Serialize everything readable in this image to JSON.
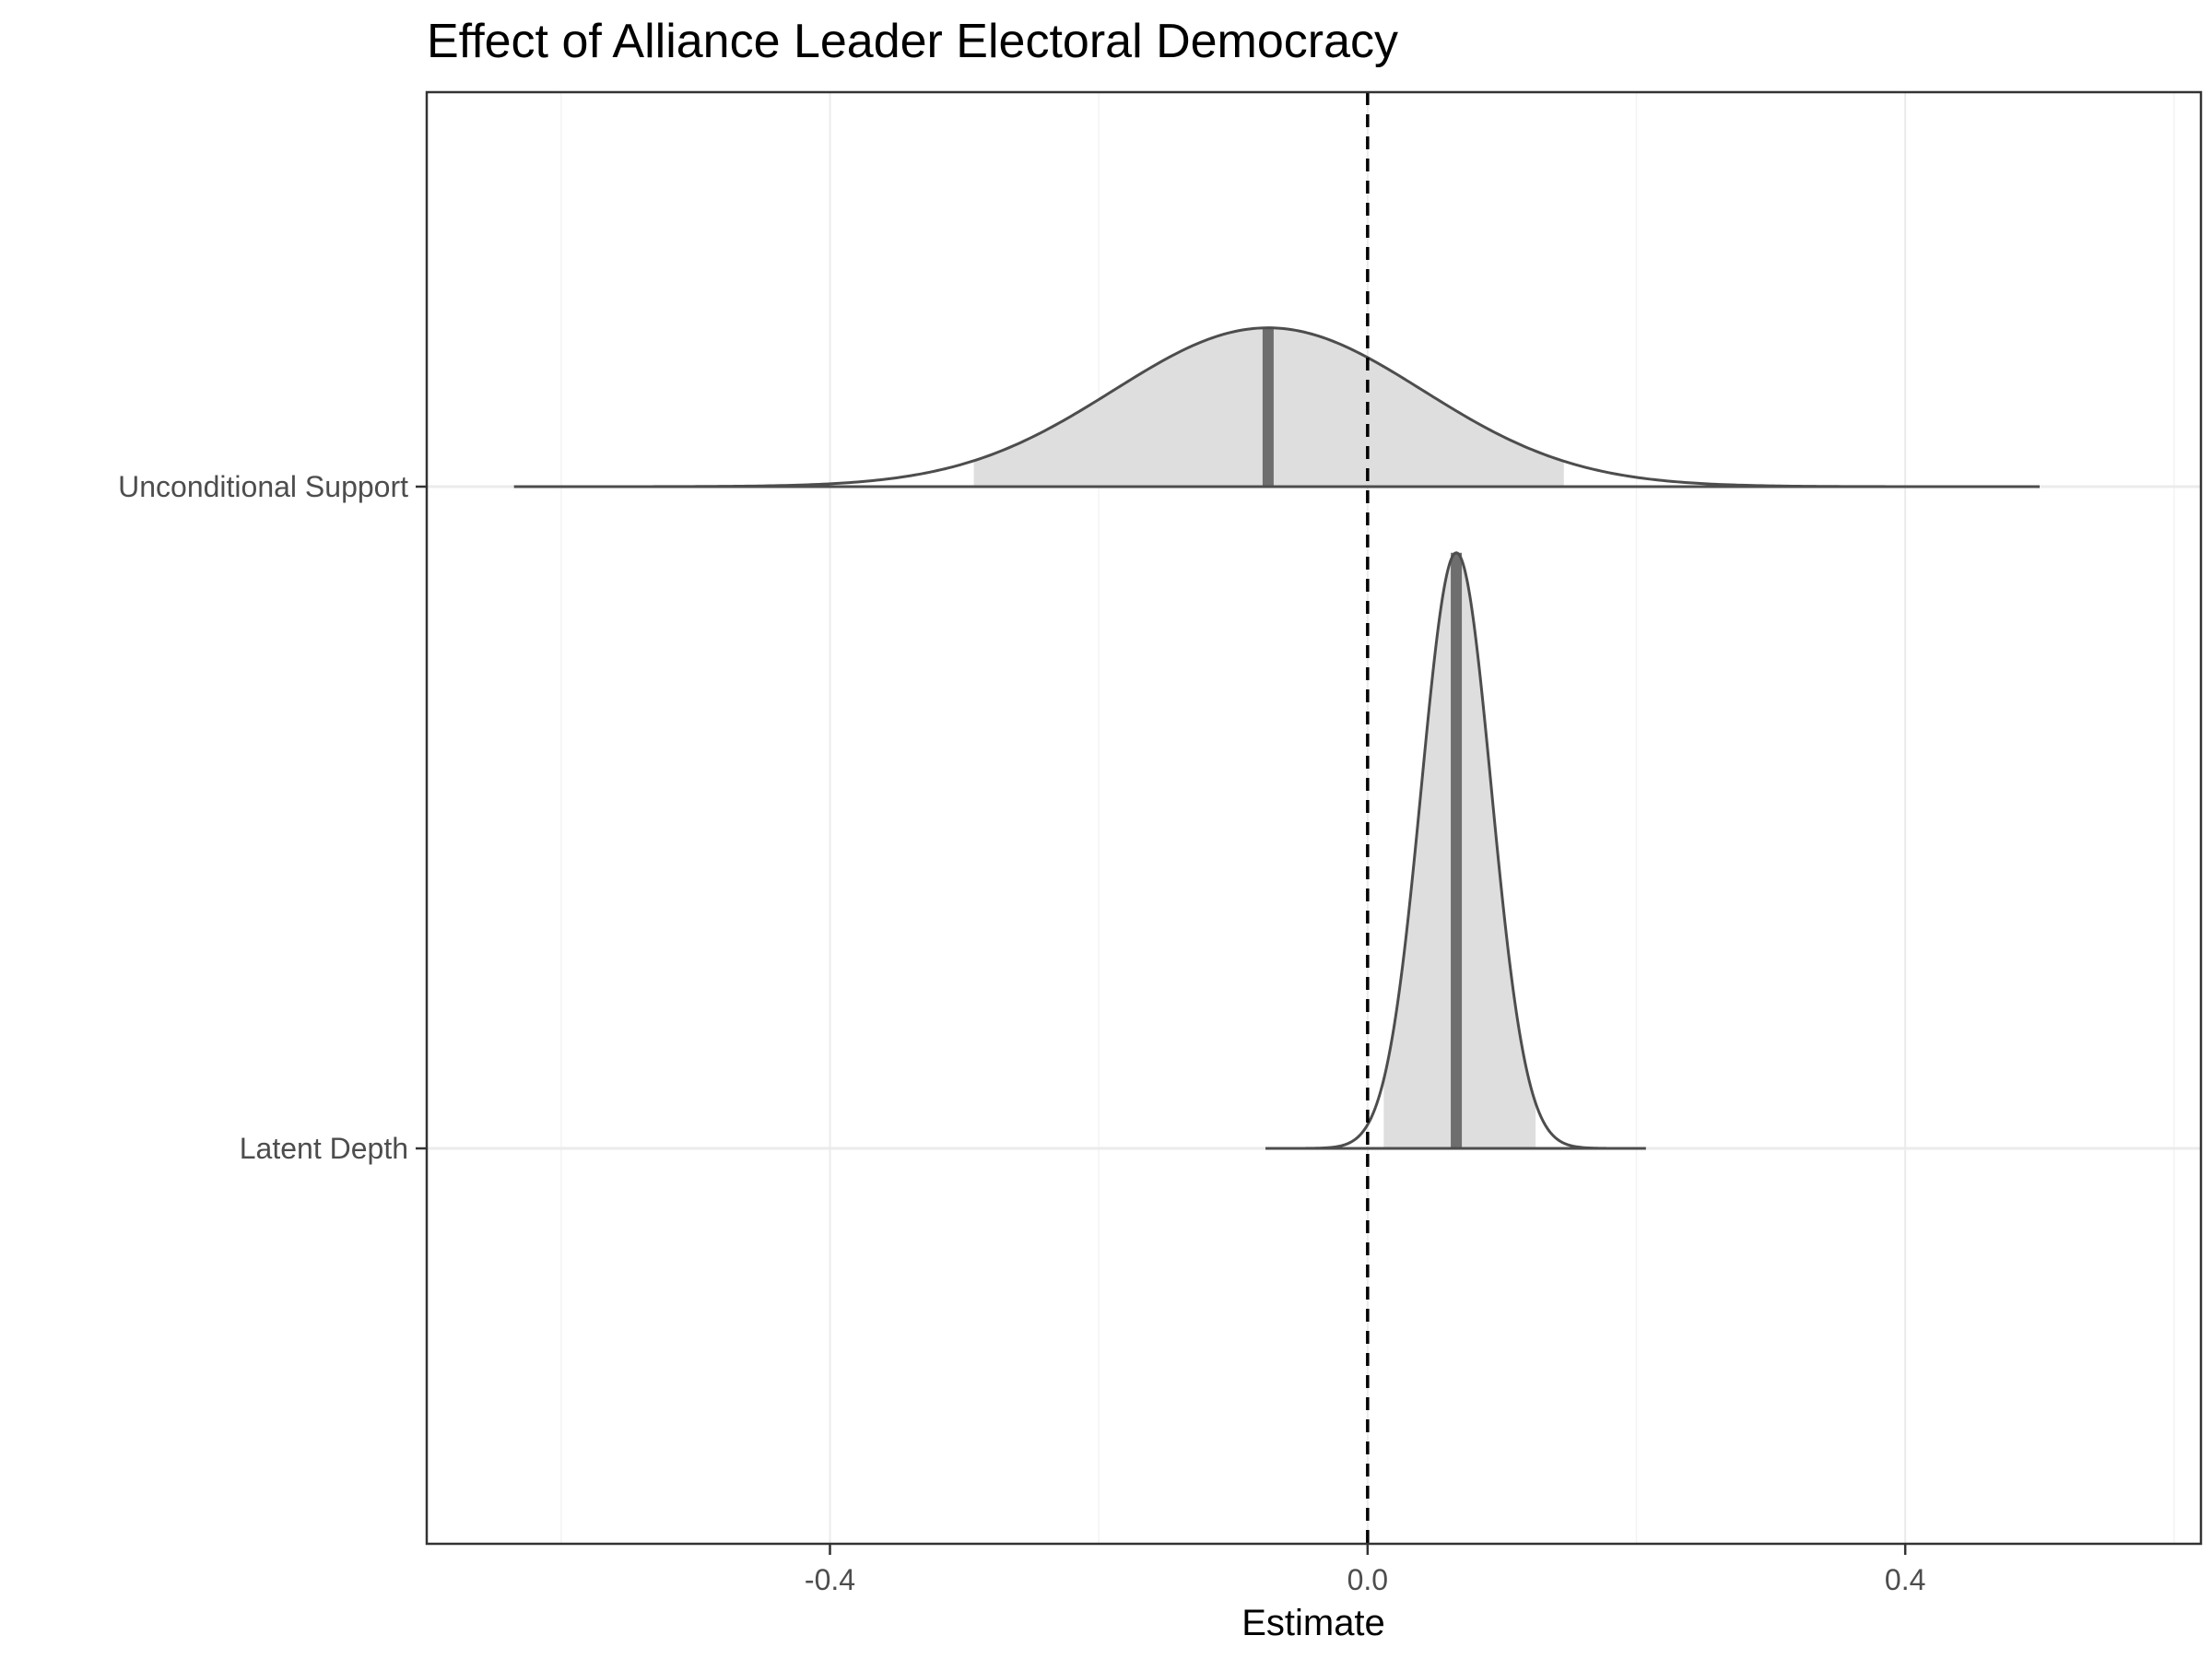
{
  "chart_data": {
    "type": "ridgeline-density",
    "title": "Effect of Alliance Leader Electoral Democracy",
    "xlabel": "Estimate",
    "ylabel": "",
    "xlim": [
      -0.7,
      0.62
    ],
    "x_ticks": [
      -0.4,
      0.0,
      0.4
    ],
    "x_tick_labels": [
      "-0.4",
      "0.0",
      "0.4"
    ],
    "minor_gridlines_x": [
      -0.6,
      -0.2,
      0.2,
      0.6
    ],
    "reference_line": {
      "x": 0.0,
      "style": "dashed"
    },
    "grid": true,
    "series": [
      {
        "name": "Unconditional Support",
        "row": 1,
        "mode": -0.074,
        "sd": 0.115,
        "range": [
          -0.635,
          0.5
        ],
        "interval": [
          -0.293,
          0.146
        ],
        "peak_height": 0.24
      },
      {
        "name": "Latent Depth",
        "row": 0,
        "mode": 0.066,
        "sd": 0.026,
        "range": [
          -0.076,
          0.207
        ],
        "interval": [
          0.012,
          0.125
        ],
        "peak_height": 0.9
      }
    ],
    "colors": {
      "fill": "#dedede",
      "outline": "#4d4d4d",
      "mode_line": "#6e6e6e",
      "reference_line": "#000000",
      "grid_major": "#ebebeb",
      "grid_minor": "#f3f3f3",
      "panel_border": "#333333"
    }
  }
}
